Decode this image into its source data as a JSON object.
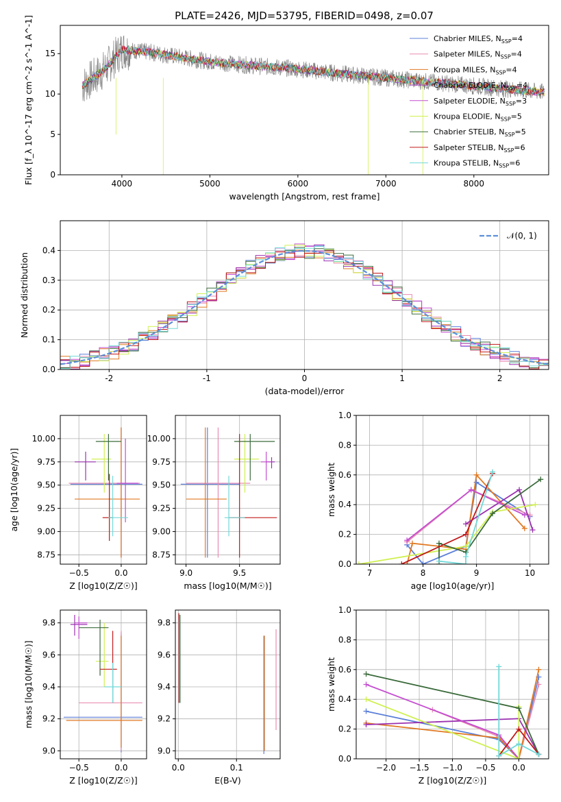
{
  "figure_title": "PLATE=2426, MJD=53795, FIBERID=0498, z=0.07",
  "colors": {
    "chabrier_miles": "#5b7fd9",
    "salpeter_miles": "#e88bb0",
    "kroupa_miles": "#e07820",
    "chabrier_elodie": "#9b30b0",
    "salpeter_elodie": "#c44dd0",
    "kroupa_elodie": "#cff050",
    "chabrier_stelib": "#3a6a3a",
    "salpeter_stelib": "#c01818",
    "kroupa_stelib": "#70d8d8",
    "data": "#808080",
    "gaussian": "#5b8ed9"
  },
  "chart_data": [
    {
      "id": "spectrum",
      "type": "line",
      "xlabel": "wavelength [Angstrom, rest frame]",
      "ylabel": "Flux [f_λ 10^-17 erg cm^-2 s^-1 A^-1]",
      "xlim": [
        3300,
        8850
      ],
      "ylim": [
        0,
        18.5
      ],
      "xticks": [
        4000,
        5000,
        6000,
        7000,
        8000
      ],
      "yticks": [
        0,
        5,
        10,
        15
      ],
      "grid": false,
      "legend_position": "upper right",
      "legend": [
        "Chabrier MILES, N_SSP=4",
        "Salpeter MILES, N_SSP=4",
        "Kroupa MILES, N_SSP=4",
        "Chabrier ELODIE, N_SSP=4",
        "Salpeter ELODIE, N_SSP=3",
        "Kroupa ELODIE, N_SSP=5",
        "Chabrier STELIB, N_SSP=5",
        "Salpeter STELIB, N_SSP=6",
        "Kroupa STELIB, N_SSP=6"
      ],
      "continuum": {
        "x": [
          3550,
          3800,
          4000,
          4300,
          4700,
          5000,
          5500,
          6000,
          6500,
          7000,
          7500,
          8000,
          8500,
          8800
        ],
        "y": [
          11,
          13,
          15.5,
          15.2,
          14.5,
          14.0,
          13.5,
          13.1,
          12.5,
          12.0,
          11.5,
          11.0,
          10.5,
          10.2
        ]
      }
    },
    {
      "id": "residuals",
      "type": "line",
      "xlabel": "(data-model)/error",
      "ylabel": "Normed distribution",
      "xlim": [
        -2.5,
        2.5
      ],
      "ylim": [
        0,
        0.5
      ],
      "xticks": [
        -2,
        -1,
        0,
        1,
        2
      ],
      "yticks": [
        0.0,
        0.1,
        0.2,
        0.3,
        0.4
      ],
      "grid": true,
      "legend_position": "upper right",
      "legend": [
        "𝒩(0, 1)"
      ]
    },
    {
      "id": "age_vs_Z",
      "type": "scatter",
      "xlabel": "Z [log10(Z/Z☉)]",
      "ylabel": "age  [log10(age/yr)]",
      "xlim": [
        -0.72,
        0.3
      ],
      "ylim": [
        8.65,
        10.25
      ],
      "xticks": [
        -0.5,
        0.0
      ],
      "yticks": [
        8.75,
        9.0,
        9.25,
        9.5,
        9.75,
        10.0
      ],
      "grid": true,
      "points": [
        {
          "s": "chabrier_miles",
          "x": 0.0,
          "xe": [
            -0.6,
            0.25
          ],
          "y": 9.51,
          "ye": [
            8.72,
            10.12
          ]
        },
        {
          "s": "salpeter_miles",
          "x": 0.0,
          "xe": [
            -0.62,
            0.22
          ],
          "y": 9.52,
          "ye": [
            8.72,
            10.12
          ]
        },
        {
          "s": "kroupa_miles",
          "x": 0.0,
          "xe": [
            -0.55,
            0.22
          ],
          "y": 9.35,
          "ye": [
            8.72,
            10.12
          ]
        },
        {
          "s": "chabrier_elodie",
          "x": -0.42,
          "xe": [
            -0.55,
            -0.3
          ],
          "y": 9.75,
          "ye": [
            9.55,
            9.86
          ]
        },
        {
          "s": "salpeter_elodie",
          "x": 0.05,
          "xe": [
            -0.05,
            0.2
          ],
          "y": 9.52,
          "ye": [
            9.1,
            10.0
          ]
        },
        {
          "s": "kroupa_elodie",
          "x": -0.2,
          "xe": [
            -0.35,
            -0.12
          ],
          "y": 9.78,
          "ye": [
            9.42,
            10.05
          ]
        },
        {
          "s": "chabrier_stelib",
          "x": -0.15,
          "xe": [
            -0.3,
            0.0
          ],
          "y": 9.97,
          "ye": [
            9.55,
            10.05
          ]
        },
        {
          "s": "salpeter_stelib",
          "x": -0.14,
          "xe": [
            -0.22,
            -0.1
          ],
          "y": 9.15,
          "ye": [
            8.9,
            9.62
          ]
        },
        {
          "s": "kroupa_stelib",
          "x": -0.1,
          "xe": [
            -0.15,
            0.08
          ],
          "y": 9.15,
          "ye": [
            8.95,
            9.6
          ]
        }
      ]
    },
    {
      "id": "age_vs_mass",
      "type": "scatter",
      "xlabel": "mass [log10(M/M☉)]",
      "ylabel": "",
      "xlim": [
        8.9,
        9.88
      ],
      "ylim": [
        8.65,
        10.25
      ],
      "xticks": [
        9.0,
        9.5
      ],
      "yticks": [
        8.75,
        9.0,
        9.25,
        9.5,
        9.75,
        10.0
      ],
      "grid": true,
      "points": [
        {
          "s": "chabrier_miles",
          "x": 9.2,
          "xe": [
            8.95,
            9.5
          ],
          "y": 9.51,
          "ye": [
            8.72,
            10.12
          ]
        },
        {
          "s": "salpeter_miles",
          "x": 9.3,
          "xe": [
            9.0,
            9.6
          ],
          "y": 9.52,
          "ye": [
            8.72,
            10.12
          ]
        },
        {
          "s": "kroupa_miles",
          "x": 9.18,
          "xe": [
            9.0,
            9.38
          ],
          "y": 9.35,
          "ye": [
            8.72,
            10.12
          ]
        },
        {
          "s": "chabrier_elodie",
          "x": 9.8,
          "xe": [
            9.75,
            9.83
          ],
          "y": 9.75,
          "ye": [
            9.68,
            9.8
          ]
        },
        {
          "s": "salpeter_elodie",
          "x": 9.75,
          "xe": [
            9.7,
            9.8
          ],
          "y": 9.75,
          "ye": [
            9.55,
            9.86
          ]
        },
        {
          "s": "kroupa_elodie",
          "x": 9.55,
          "xe": [
            9.45,
            9.68
          ],
          "y": 9.78,
          "ye": [
            9.42,
            10.05
          ]
        },
        {
          "s": "chabrier_stelib",
          "x": 9.6,
          "xe": [
            9.45,
            9.83
          ],
          "y": 9.97,
          "ye": [
            9.55,
            10.05
          ]
        },
        {
          "s": "salpeter_stelib",
          "x": 9.5,
          "xe": [
            9.4,
            9.85
          ],
          "y": 9.15,
          "ye": [
            8.72,
            10.05
          ]
        },
        {
          "s": "kroupa_stelib",
          "x": 9.4,
          "xe": [
            9.36,
            9.55
          ],
          "y": 9.15,
          "ye": [
            8.95,
            9.6
          ]
        }
      ]
    },
    {
      "id": "mass_weight_vs_age",
      "type": "line",
      "xlabel": "age  [log10(age/yr)]",
      "ylabel": "mass weight",
      "xlim": [
        6.75,
        10.35
      ],
      "ylim": [
        0,
        1.0
      ],
      "xticks": [
        7,
        8,
        9,
        10
      ],
      "yticks": [
        0.0,
        0.2,
        0.4,
        0.6,
        0.8,
        1.0
      ],
      "grid": true,
      "series": [
        {
          "s": "chabrier_miles",
          "x": [
            7.7,
            8.0,
            8.8,
            9.0,
            10.0
          ],
          "y": [
            0.13,
            0.0,
            0.12,
            0.55,
            0.32
          ]
        },
        {
          "s": "salpeter_miles",
          "x": [
            7.7,
            8.9,
            10.0
          ],
          "y": [
            0.15,
            0.5,
            0.33
          ]
        },
        {
          "s": "kroupa_miles",
          "x": [
            7.7,
            7.8,
            8.8,
            9.0,
            9.9
          ],
          "y": [
            0.0,
            0.14,
            0.1,
            0.6,
            0.24
          ]
        },
        {
          "s": "chabrier_elodie",
          "x": [
            8.8,
            9.8,
            10.05
          ],
          "y": [
            0.27,
            0.5,
            0.23
          ]
        },
        {
          "s": "salpeter_elodie",
          "x": [
            7.7,
            8.9,
            9.9
          ],
          "y": [
            0.16,
            0.5,
            0.33
          ]
        },
        {
          "s": "kroupa_elodie",
          "x": [
            6.8,
            8.8,
            9.3,
            10.1
          ],
          "y": [
            0.0,
            0.12,
            0.35,
            0.4
          ]
        },
        {
          "s": "chabrier_stelib",
          "x": [
            8.3,
            8.3,
            8.8,
            9.3,
            10.2
          ],
          "y": [
            0.0,
            0.14,
            0.08,
            0.34,
            0.57
          ]
        },
        {
          "s": "salpeter_stelib",
          "x": [
            7.6,
            8.8,
            9.3
          ],
          "y": [
            0.0,
            0.2,
            0.61
          ]
        },
        {
          "s": "kroupa_stelib",
          "x": [
            8.3,
            8.8,
            8.8,
            9.3
          ],
          "y": [
            0.02,
            0.0,
            0.05,
            0.62
          ]
        }
      ]
    },
    {
      "id": "mass_vs_Z",
      "type": "scatter",
      "xlabel": "Z [log10(Z/Z☉)]",
      "ylabel": "mass [log10(M/M☉)]",
      "xlim": [
        -0.72,
        0.3
      ],
      "ylim": [
        8.95,
        9.88
      ],
      "xticks": [
        -0.5,
        0.0
      ],
      "yticks": [
        9.0,
        9.2,
        9.4,
        9.6,
        9.8
      ],
      "grid": true,
      "points": [
        {
          "s": "chabrier_miles",
          "x": 0.0,
          "xe": [
            -0.68,
            0.25
          ],
          "y": 9.21,
          "ye": [
            8.99,
            9.74
          ]
        },
        {
          "s": "salpeter_miles",
          "x": 0.0,
          "xe": [
            -0.5,
            0.25
          ],
          "y": 9.3,
          "ye": [
            9.0,
            9.75
          ]
        },
        {
          "s": "kroupa_miles",
          "x": 0.0,
          "xe": [
            -0.65,
            0.25
          ],
          "y": 9.19,
          "ye": [
            9.02,
            9.72
          ]
        },
        {
          "s": "chabrier_elodie",
          "x": -0.55,
          "xe": [
            -0.6,
            -0.4
          ],
          "y": 9.79,
          "ye": [
            9.72,
            9.85
          ]
        },
        {
          "s": "salpeter_elodie",
          "x": -0.5,
          "xe": [
            -0.55,
            -0.4
          ],
          "y": 9.8,
          "ye": [
            9.7,
            9.84
          ]
        },
        {
          "s": "kroupa_elodie",
          "x": -0.2,
          "xe": [
            -0.3,
            -0.15
          ],
          "y": 9.56,
          "ye": [
            9.4,
            9.8
          ]
        },
        {
          "s": "chabrier_stelib",
          "x": -0.25,
          "xe": [
            -0.5,
            -0.15
          ],
          "y": 9.77,
          "ye": [
            9.47,
            9.82
          ]
        },
        {
          "s": "salpeter_stelib",
          "x": -0.1,
          "xe": [
            -0.25,
            -0.05
          ],
          "y": 9.51,
          "ye": [
            9.3,
            9.75
          ]
        },
        {
          "s": "kroupa_stelib",
          "x": -0.1,
          "xe": [
            -0.2,
            0.0
          ],
          "y": 9.4,
          "ye": [
            9.3,
            9.55
          ]
        }
      ]
    },
    {
      "id": "mass_vs_ebv",
      "type": "scatter",
      "xlabel": "E(B-V)",
      "ylabel": "",
      "xlim": [
        -0.005,
        0.175
      ],
      "ylim": [
        8.95,
        9.88
      ],
      "xticks": [
        0.0,
        0.1
      ],
      "yticks": [
        9.0,
        9.2,
        9.4,
        9.6,
        9.8
      ],
      "grid": true,
      "vlines": [
        {
          "s": "salpeter_stelib",
          "x": 0.001,
          "ylo": 9.3,
          "yhi": 9.86
        },
        {
          "s": "kroupa_stelib",
          "x": 0.002,
          "ylo": 9.3,
          "yhi": 9.82
        },
        {
          "s": "chabrier_stelib",
          "x": 0.003,
          "ylo": 9.3,
          "yhi": 9.85
        },
        {
          "s": "chabrier_miles",
          "x": 0.147,
          "ylo": 8.98,
          "yhi": 9.72
        },
        {
          "s": "kroupa_miles",
          "x": 0.148,
          "ylo": 9.0,
          "yhi": 9.72
        },
        {
          "s": "salpeter_miles",
          "x": 0.168,
          "ylo": 9.13,
          "yhi": 9.76
        }
      ]
    },
    {
      "id": "mass_weight_vs_Z",
      "type": "line",
      "xlabel": "Z [log10(Z/Z☉)]",
      "ylabel": "mass weight",
      "xlim": [
        -2.45,
        0.45
      ],
      "ylim": [
        0,
        1.0
      ],
      "xticks": [
        -2.0,
        -1.5,
        -1.0,
        -0.5,
        0.0
      ],
      "yticks": [
        0.0,
        0.2,
        0.4,
        0.6,
        0.8,
        1.0
      ],
      "grid": true,
      "series": [
        {
          "s": "chabrier_miles",
          "x": [
            -2.3,
            -0.3,
            0.0,
            0.3
          ],
          "y": [
            0.32,
            0.13,
            0.0,
            0.55
          ]
        },
        {
          "s": "salpeter_miles",
          "x": [
            -1.3,
            -0.3,
            0.0,
            0.3
          ],
          "y": [
            0.33,
            0.15,
            0.0,
            0.5
          ]
        },
        {
          "s": "kroupa_miles",
          "x": [
            -2.3,
            -0.3,
            0.0,
            0.3
          ],
          "y": [
            0.24,
            0.14,
            0.0,
            0.6
          ]
        },
        {
          "s": "chabrier_elodie",
          "x": [
            -2.3,
            0.0,
            0.3
          ],
          "y": [
            0.23,
            0.27,
            0.03
          ]
        },
        {
          "s": "salpeter_elodie",
          "x": [
            -2.3,
            -0.3,
            0.0
          ],
          "y": [
            0.5,
            0.16,
            0.0
          ]
        },
        {
          "s": "kroupa_elodie",
          "x": [
            -2.3,
            0.0,
            0.0
          ],
          "y": [
            0.4,
            0.0,
            0.35
          ]
        },
        {
          "s": "chabrier_stelib",
          "x": [
            -2.3,
            0.0,
            0.3
          ],
          "y": [
            0.57,
            0.34,
            0.03
          ]
        },
        {
          "s": "salpeter_stelib",
          "x": [
            -0.3,
            0.0,
            0.3
          ],
          "y": [
            0.02,
            0.2,
            0.03
          ]
        },
        {
          "s": "kroupa_stelib",
          "x": [
            -0.3,
            -0.3,
            0.0,
            0.3
          ],
          "y": [
            0.62,
            0.02,
            0.1,
            0.03
          ]
        }
      ]
    }
  ]
}
